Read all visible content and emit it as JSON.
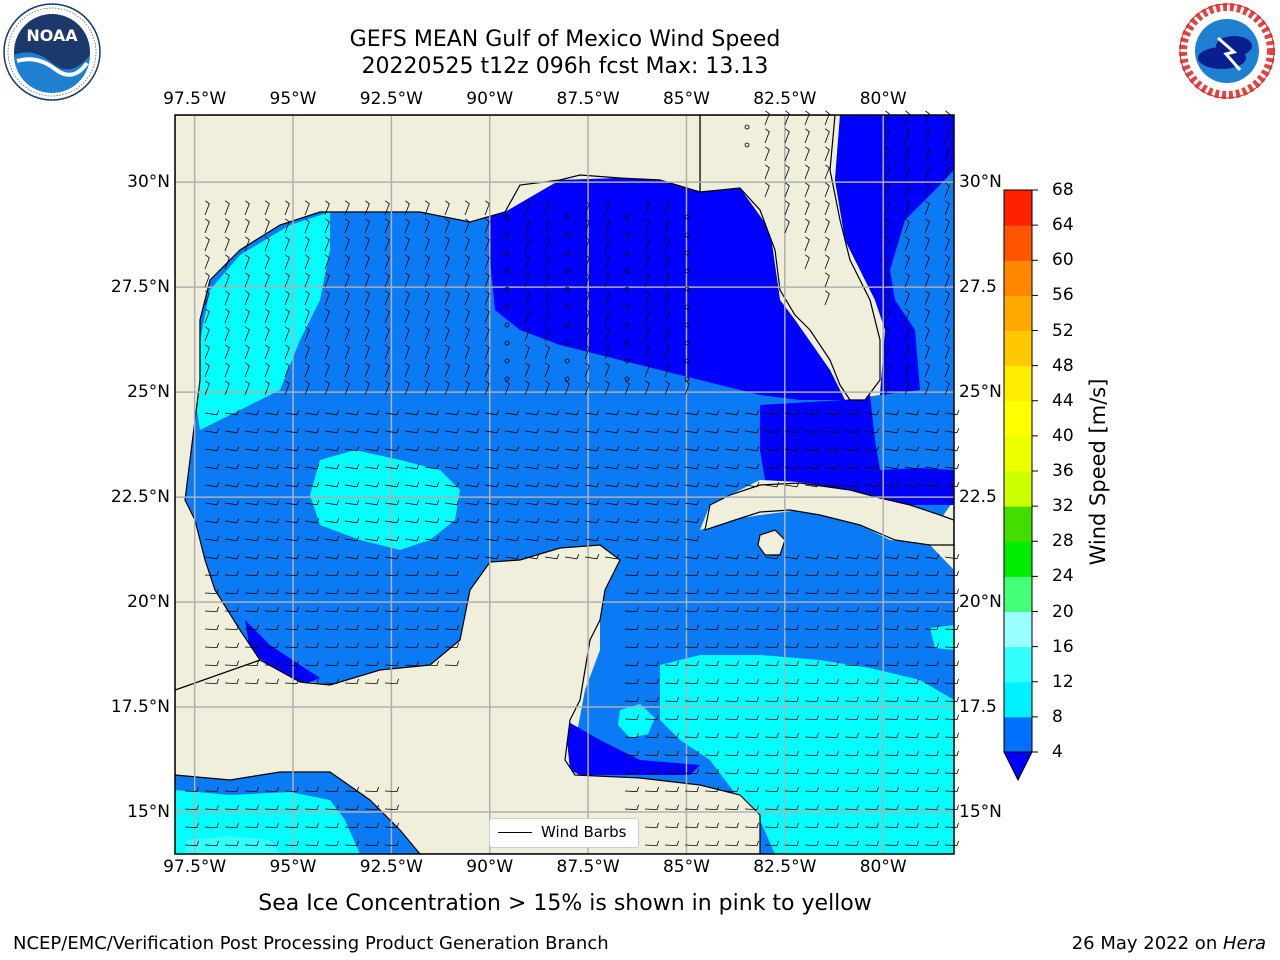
{
  "title": {
    "line1": "GEFS MEAN Gulf of Mexico Wind Speed",
    "line2": "20220525 t12z 096h fcst   Max: 13.13"
  },
  "logos": {
    "noaa_text": "NOAA"
  },
  "axes": {
    "lon_labels": [
      "97.5°W",
      "95°W",
      "92.5°W",
      "90°W",
      "87.5°W",
      "85°W",
      "82.5°W",
      "80°W"
    ],
    "lon_values": [
      -97.5,
      -95,
      -92.5,
      -90,
      -87.5,
      -85,
      -82.5,
      -80
    ],
    "lat_labels_left": [
      "30°N",
      "27.5°N",
      "25°N",
      "22.5°N",
      "20°N",
      "17.5°N",
      "15°N"
    ],
    "lat_labels_right": [
      "30°N",
      "27.5",
      "25°N",
      "22.5",
      "20°N",
      "17.5",
      "15°N"
    ],
    "lat_values": [
      30,
      27.5,
      25,
      22.5,
      20,
      17.5,
      15
    ],
    "lon_range": [
      -98,
      -78.2
    ],
    "lat_range": [
      14,
      31.6
    ],
    "grid": true
  },
  "legend": {
    "label": "Wind Barbs",
    "placement": "lower-center"
  },
  "colorbar": {
    "label": "Wind Speed [m/s]",
    "ticks": [
      4,
      8,
      12,
      16,
      20,
      24,
      28,
      32,
      36,
      40,
      44,
      48,
      52,
      56,
      60,
      64,
      68
    ],
    "colors": [
      "#0070ff",
      "#00f0ff",
      "#33ffff",
      "#99ffff",
      "#44ff77",
      "#00ee00",
      "#44dd00",
      "#ccff00",
      "#eeff00",
      "#ffff00",
      "#ffee00",
      "#ffc800",
      "#ffaa00",
      "#ff8800",
      "#ff5500",
      "#ff2000",
      "#ff0000"
    ],
    "under_color": "#0000ff"
  },
  "colors": {
    "land": "#efefdc",
    "level_0_4": "#0000ff",
    "level_4_8": "#0a7af5",
    "level_8_12": "#00ffff",
    "level_12_16": "#33ffff",
    "coast": "#000000",
    "grid": "#b0b0b0"
  },
  "notes": {
    "sea_ice": "Sea Ice Concentration > 15% is shown in pink to yellow"
  },
  "footer": {
    "left": "NCEP/EMC/Verification Post Processing Product Generation Branch",
    "date": "26 May 2022 on ",
    "machine": "Hera"
  }
}
